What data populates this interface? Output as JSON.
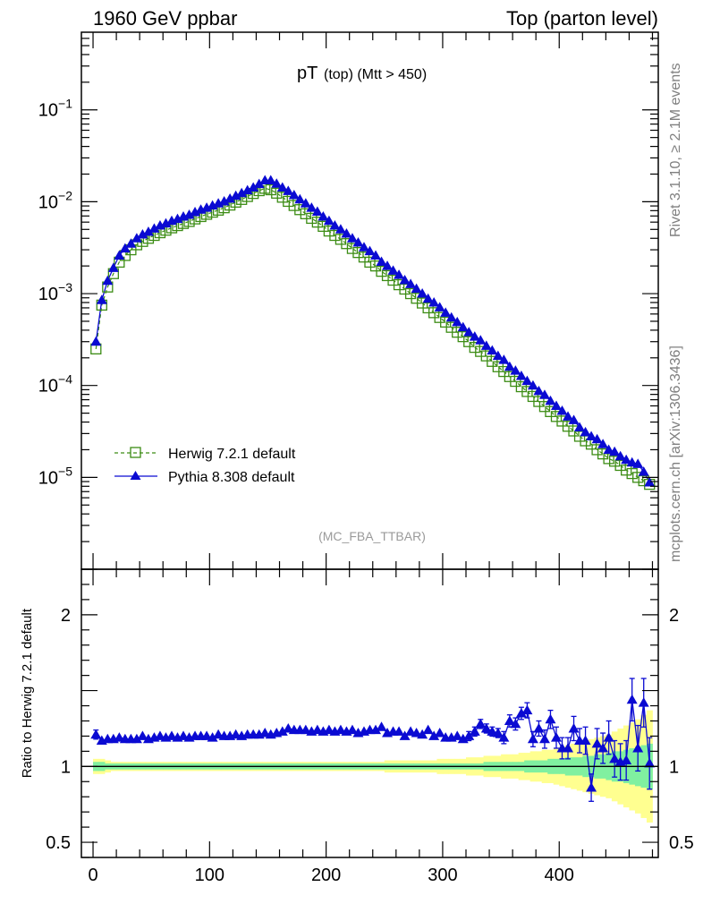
{
  "header": {
    "left": "1960 GeV ppbar",
    "right": "Top (parton level)"
  },
  "side_labels": {
    "rivet": "Rivet 3.1.10, ≥ 2.1M events",
    "mcplots": "mcplots.cern.ch [arXiv:1306.3436]"
  },
  "colors": {
    "herwig": "#3c8c14",
    "pythia": "#0a0ad2",
    "band_inner": "#80f0a0",
    "band_outer": "#ffff90"
  },
  "chart_data": [
    {
      "type": "line",
      "title": "pT (top) (Mtt > 450)",
      "title_main": "pT",
      "title_sub": "(top) (Mtt > 450)",
      "watermark": "(MC_FBA_TTBAR)",
      "yscale": "log",
      "xlim": [
        -10,
        485
      ],
      "ylim": [
        1e-06,
        0.7
      ],
      "yticks": [
        {
          "value": 1e-05,
          "base": "10",
          "exp": "−5"
        },
        {
          "value": 0.0001,
          "base": "10",
          "exp": "−4"
        },
        {
          "value": 0.001,
          "base": "10",
          "exp": "−3"
        },
        {
          "value": 0.01,
          "base": "10",
          "exp": "−2"
        },
        {
          "value": 0.1,
          "base": "10",
          "exp": "−1"
        }
      ],
      "legend_position": "lower-left",
      "series": [
        {
          "name": "Herwig 7.2.1 default",
          "style": "dashed-open-square",
          "x": [
            2.5,
            7.5,
            12.5,
            17.5,
            22.5,
            27.5,
            32.5,
            37.5,
            42.5,
            47.5,
            52.5,
            57.5,
            62.5,
            67.5,
            72.5,
            77.5,
            82.5,
            87.5,
            92.5,
            97.5,
            102.5,
            107.5,
            112.5,
            117.5,
            122.5,
            127.5,
            132.5,
            137.5,
            142.5,
            147.5,
            152.5,
            157.5,
            162.5,
            167.5,
            172.5,
            177.5,
            182.5,
            187.5,
            192.5,
            197.5,
            202.5,
            207.5,
            212.5,
            217.5,
            222.5,
            227.5,
            232.5,
            237.5,
            242.5,
            247.5,
            252.5,
            257.5,
            262.5,
            267.5,
            272.5,
            277.5,
            282.5,
            287.5,
            292.5,
            297.5,
            302.5,
            307.5,
            312.5,
            317.5,
            322.5,
            327.5,
            332.5,
            337.5,
            342.5,
            347.5,
            352.5,
            357.5,
            362.5,
            367.5,
            372.5,
            377.5,
            382.5,
            387.5,
            392.5,
            397.5,
            402.5,
            407.5,
            412.5,
            417.5,
            422.5,
            427.5,
            432.5,
            437.5,
            442.5,
            447.5,
            452.5,
            457.5,
            462.5,
            467.5,
            472.5,
            477.5
          ],
          "y": [
            0.00025,
            0.00075,
            0.00118,
            0.00165,
            0.0022,
            0.0026,
            0.003,
            0.0034,
            0.0037,
            0.004,
            0.0043,
            0.0046,
            0.0049,
            0.0052,
            0.0055,
            0.0058,
            0.0061,
            0.0065,
            0.0069,
            0.0073,
            0.0077,
            0.0081,
            0.0086,
            0.0092,
            0.0099,
            0.0106,
            0.0114,
            0.0123,
            0.0132,
            0.014,
            0.0135,
            0.0124,
            0.0112,
            0.0101,
            0.0091,
            0.0082,
            0.0074,
            0.0066,
            0.006,
            0.0054,
            0.0048,
            0.0043,
            0.0039,
            0.0035,
            0.0031,
            0.0028,
            0.0025,
            0.0022,
            0.002,
            0.00175,
            0.00157,
            0.0014,
            0.00125,
            0.00112,
            0.001,
            0.00089,
            0.00079,
            0.0007,
            0.00062,
            0.00055,
            0.00049,
            0.00043,
            0.00038,
            0.00034,
            0.0003,
            0.00026,
            0.000235,
            0.00021,
            0.000183,
            0.00016,
            0.000142,
            0.000125,
            0.000111,
            9.7e-05,
            8.6e-05,
            7.6e-05,
            6.7e-05,
            5.9e-05,
            5.2e-05,
            4.6e-05,
            4.1e-05,
            3.6e-05,
            3.2e-05,
            2.8e-05,
            2.5e-05,
            2.3e-05,
            2e-05,
            1.8e-05,
            1.6e-05,
            1.5e-05,
            1.35e-05,
            1.2e-05,
            1.1e-05,
            1e-05,
            9.2e-06,
            8.4e-06
          ]
        },
        {
          "name": "Pythia 8.308 default",
          "style": "solid-filled-triangle",
          "x": [
            2.5,
            7.5,
            12.5,
            17.5,
            22.5,
            27.5,
            32.5,
            37.5,
            42.5,
            47.5,
            52.5,
            57.5,
            62.5,
            67.5,
            72.5,
            77.5,
            82.5,
            87.5,
            92.5,
            97.5,
            102.5,
            107.5,
            112.5,
            117.5,
            122.5,
            127.5,
            132.5,
            137.5,
            142.5,
            147.5,
            152.5,
            157.5,
            162.5,
            167.5,
            172.5,
            177.5,
            182.5,
            187.5,
            192.5,
            197.5,
            202.5,
            207.5,
            212.5,
            217.5,
            222.5,
            227.5,
            232.5,
            237.5,
            242.5,
            247.5,
            252.5,
            257.5,
            262.5,
            267.5,
            272.5,
            277.5,
            282.5,
            287.5,
            292.5,
            297.5,
            302.5,
            307.5,
            312.5,
            317.5,
            322.5,
            327.5,
            332.5,
            337.5,
            342.5,
            347.5,
            352.5,
            357.5,
            362.5,
            367.5,
            372.5,
            377.5,
            382.5,
            387.5,
            392.5,
            397.5,
            402.5,
            407.5,
            412.5,
            417.5,
            422.5,
            427.5,
            432.5,
            437.5,
            442.5,
            447.5,
            452.5,
            457.5,
            462.5,
            467.5,
            472.5,
            477.5
          ],
          "y": [
            0.0003,
            0.00085,
            0.00138,
            0.0019,
            0.0026,
            0.0031,
            0.0035,
            0.004,
            0.0044,
            0.0047,
            0.0051,
            0.0055,
            0.0058,
            0.0062,
            0.0065,
            0.0069,
            0.0072,
            0.0077,
            0.0082,
            0.0086,
            0.0091,
            0.0096,
            0.0101,
            0.0108,
            0.0116,
            0.0124,
            0.0133,
            0.0143,
            0.0156,
            0.0171,
            0.0171,
            0.0157,
            0.0143,
            0.0131,
            0.0118,
            0.0106,
            0.0096,
            0.0086,
            0.0078,
            0.0069,
            0.0062,
            0.0055,
            0.005,
            0.0045,
            0.004,
            0.0036,
            0.0032,
            0.0029,
            0.0026,
            0.00222,
            0.002,
            0.00178,
            0.0016,
            0.0014,
            0.00127,
            0.00113,
            0.001,
            0.00088,
            0.0008,
            0.00071,
            0.00062,
            0.00055,
            0.00049,
            0.00043,
            0.00038,
            0.00034,
            0.00031,
            0.00027,
            0.00024,
            0.00021,
            0.00019,
            0.00016,
            0.000145,
            0.000127,
            0.000112,
            0.0001,
            8.7e-05,
            7.9e-05,
            6.8e-05,
            6e-05,
            5.3e-05,
            4.6e-05,
            4.2e-05,
            3.5e-05,
            3.1e-05,
            2.8e-05,
            2.6e-05,
            2.3e-05,
            2e-05,
            1.9e-05,
            1.7e-05,
            1.55e-05,
            1.45e-05,
            1.4e-05,
            1.15e-05,
            8.8e-06
          ]
        }
      ]
    },
    {
      "type": "line",
      "ylabel": "Ratio to Herwig 7.2.1 default",
      "ylim": [
        0.4,
        2.3
      ],
      "xlim": [
        -10,
        485
      ],
      "yticks": [
        {
          "value": 0.5,
          "label": "0.5"
        },
        {
          "value": 1,
          "label": "1"
        },
        {
          "value": 2,
          "label": "2"
        }
      ],
      "xticks": [
        {
          "value": 0,
          "label": "0"
        },
        {
          "value": 100,
          "label": "100"
        },
        {
          "value": 200,
          "label": "200"
        },
        {
          "value": 300,
          "label": "300"
        },
        {
          "value": 400,
          "label": "400"
        }
      ],
      "reference_line": 1,
      "series": [
        {
          "name": "Pythia 8.308 default",
          "x": [
            2.5,
            7.5,
            12.5,
            17.5,
            22.5,
            27.5,
            32.5,
            37.5,
            42.5,
            47.5,
            52.5,
            57.5,
            62.5,
            67.5,
            72.5,
            77.5,
            82.5,
            87.5,
            92.5,
            97.5,
            102.5,
            107.5,
            112.5,
            117.5,
            122.5,
            127.5,
            132.5,
            137.5,
            142.5,
            147.5,
            152.5,
            157.5,
            162.5,
            167.5,
            172.5,
            177.5,
            182.5,
            187.5,
            192.5,
            197.5,
            202.5,
            207.5,
            212.5,
            217.5,
            222.5,
            227.5,
            232.5,
            237.5,
            242.5,
            247.5,
            252.5,
            257.5,
            262.5,
            267.5,
            272.5,
            277.5,
            282.5,
            287.5,
            292.5,
            297.5,
            302.5,
            307.5,
            312.5,
            317.5,
            322.5,
            327.5,
            332.5,
            337.5,
            342.5,
            347.5,
            352.5,
            357.5,
            362.5,
            367.5,
            372.5,
            377.5,
            382.5,
            387.5,
            392.5,
            397.5,
            402.5,
            407.5,
            412.5,
            417.5,
            422.5,
            427.5,
            432.5,
            437.5,
            442.5,
            447.5,
            452.5,
            457.5,
            462.5,
            467.5,
            472.5,
            477.5
          ],
          "values": [
            1.21,
            1.17,
            1.18,
            1.18,
            1.19,
            1.18,
            1.18,
            1.18,
            1.2,
            1.18,
            1.19,
            1.2,
            1.19,
            1.2,
            1.19,
            1.2,
            1.19,
            1.2,
            1.2,
            1.2,
            1.19,
            1.21,
            1.2,
            1.2,
            1.21,
            1.2,
            1.21,
            1.21,
            1.21,
            1.22,
            1.21,
            1.22,
            1.23,
            1.25,
            1.24,
            1.24,
            1.24,
            1.23,
            1.24,
            1.23,
            1.24,
            1.23,
            1.24,
            1.23,
            1.24,
            1.22,
            1.23,
            1.24,
            1.24,
            1.26,
            1.22,
            1.23,
            1.23,
            1.2,
            1.23,
            1.22,
            1.21,
            1.24,
            1.2,
            1.22,
            1.19,
            1.19,
            1.2,
            1.18,
            1.2,
            1.23,
            1.28,
            1.25,
            1.23,
            1.22,
            1.19,
            1.3,
            1.28,
            1.35,
            1.37,
            1.18,
            1.25,
            1.18,
            1.31,
            1.19,
            1.12,
            1.12,
            1.25,
            1.17,
            1.17,
            0.86,
            1.15,
            1.12,
            1.19,
            1.05,
            1.03,
            1.04,
            1.44,
            1.12,
            1.42,
            1.02
          ],
          "errors": [
            0.03,
            0.02,
            0.02,
            0.02,
            0.02,
            0.02,
            0.02,
            0.02,
            0.02,
            0.02,
            0.02,
            0.02,
            0.02,
            0.02,
            0.02,
            0.02,
            0.02,
            0.02,
            0.02,
            0.02,
            0.02,
            0.02,
            0.02,
            0.02,
            0.02,
            0.02,
            0.02,
            0.02,
            0.02,
            0.02,
            0.02,
            0.02,
            0.02,
            0.02,
            0.02,
            0.02,
            0.02,
            0.02,
            0.02,
            0.02,
            0.02,
            0.02,
            0.02,
            0.02,
            0.02,
            0.02,
            0.02,
            0.02,
            0.02,
            0.02,
            0.02,
            0.02,
            0.02,
            0.02,
            0.02,
            0.02,
            0.02,
            0.02,
            0.02,
            0.02,
            0.02,
            0.02,
            0.02,
            0.02,
            0.03,
            0.03,
            0.03,
            0.03,
            0.03,
            0.03,
            0.04,
            0.04,
            0.04,
            0.04,
            0.05,
            0.05,
            0.05,
            0.06,
            0.06,
            0.07,
            0.07,
            0.07,
            0.08,
            0.08,
            0.09,
            0.09,
            0.1,
            0.1,
            0.11,
            0.12,
            0.12,
            0.13,
            0.14,
            0.15,
            0.16,
            0.17
          ]
        }
      ],
      "bands": {
        "inner_halfwidth": [
          0.03,
          0.03,
          0.02,
          0.02,
          0.02,
          0.02,
          0.02,
          0.02,
          0.02,
          0.02,
          0.02,
          0.02,
          0.02,
          0.02,
          0.02,
          0.02,
          0.02,
          0.02,
          0.02,
          0.02,
          0.02,
          0.02,
          0.02,
          0.02,
          0.02,
          0.02,
          0.02,
          0.02,
          0.02,
          0.02,
          0.02,
          0.02,
          0.02,
          0.02,
          0.02,
          0.02,
          0.02,
          0.02,
          0.02,
          0.02,
          0.02,
          0.02,
          0.02,
          0.02,
          0.02,
          0.02,
          0.02,
          0.02,
          0.02,
          0.02,
          0.02,
          0.02,
          0.02,
          0.02,
          0.02,
          0.02,
          0.02,
          0.02,
          0.02,
          0.02,
          0.02,
          0.02,
          0.02,
          0.02,
          0.02,
          0.02,
          0.02,
          0.03,
          0.03,
          0.03,
          0.03,
          0.03,
          0.03,
          0.03,
          0.04,
          0.04,
          0.04,
          0.04,
          0.05,
          0.05,
          0.05,
          0.06,
          0.06,
          0.06,
          0.07,
          0.07,
          0.08,
          0.08,
          0.09,
          0.1,
          0.1,
          0.11,
          0.12,
          0.13,
          0.14,
          0.15
        ],
        "outer_halfwidth": [
          0.05,
          0.05,
          0.04,
          0.03,
          0.03,
          0.03,
          0.03,
          0.03,
          0.03,
          0.03,
          0.03,
          0.03,
          0.03,
          0.03,
          0.03,
          0.03,
          0.03,
          0.03,
          0.03,
          0.03,
          0.03,
          0.03,
          0.03,
          0.03,
          0.03,
          0.03,
          0.03,
          0.03,
          0.03,
          0.03,
          0.03,
          0.03,
          0.03,
          0.03,
          0.03,
          0.03,
          0.03,
          0.03,
          0.03,
          0.03,
          0.03,
          0.03,
          0.03,
          0.03,
          0.03,
          0.03,
          0.03,
          0.03,
          0.03,
          0.03,
          0.04,
          0.04,
          0.04,
          0.04,
          0.04,
          0.04,
          0.04,
          0.04,
          0.04,
          0.05,
          0.05,
          0.05,
          0.05,
          0.05,
          0.06,
          0.06,
          0.06,
          0.07,
          0.07,
          0.07,
          0.08,
          0.08,
          0.08,
          0.09,
          0.09,
          0.1,
          0.1,
          0.11,
          0.11,
          0.12,
          0.13,
          0.14,
          0.15,
          0.16,
          0.17,
          0.18,
          0.19,
          0.2,
          0.21,
          0.23,
          0.25,
          0.27,
          0.29,
          0.31,
          0.34,
          0.37
        ]
      }
    }
  ]
}
